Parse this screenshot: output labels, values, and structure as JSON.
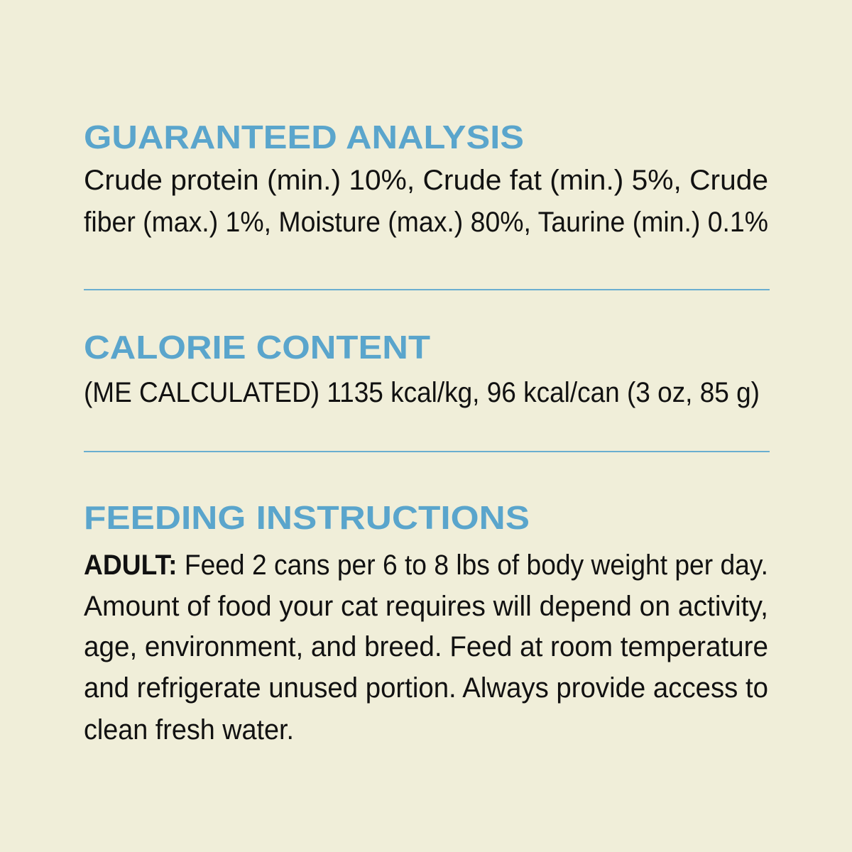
{
  "guaranteed_analysis": {
    "title": "GUARANTEED ANALYSIS",
    "lines": [
      "Crude protein (min.) 10%, Crude fat (min.) 5%, Crude",
      "fiber (max.) 1%, Moisture (max.) 80%, Taurine (min.) 0.1%"
    ]
  },
  "calorie_content": {
    "title": "CALORIE CONTENT",
    "text": "(ME CALCULATED) 1135 kcal/kg, 96 kcal/can (3 oz, 85 g)"
  },
  "feeding_instructions": {
    "title": "FEEDING INSTRUCTIONS",
    "adult_label": "ADULT:",
    "lines": [
      " Feed 2 cans per 6 to 8 lbs of body weight per day.",
      "Amount of food your cat requires will depend on activity,",
      "age, environment, and breed. Feed at room temperature",
      "and refrigerate unused portion. Always provide access to",
      "clean fresh water."
    ]
  },
  "colors": {
    "background": "#f0eed9",
    "heading": "#5aa5cc",
    "divider": "#6aaed0",
    "text": "#111111"
  }
}
